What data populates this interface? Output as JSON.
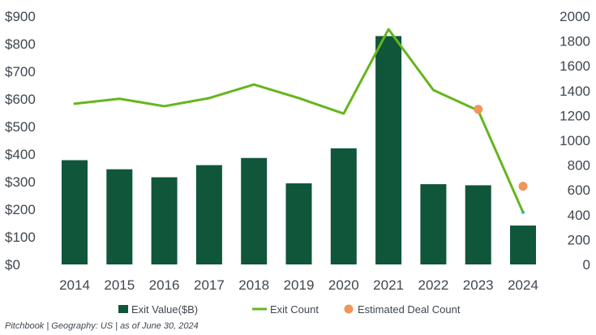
{
  "chart_data": {
    "type": "bar+line",
    "categories": [
      "2014",
      "2015",
      "2016",
      "2017",
      "2018",
      "2019",
      "2020",
      "2021",
      "2022",
      "2023",
      "2024"
    ],
    "series": [
      {
        "name": "Exit  Value($B)",
        "type": "bar",
        "axis": "left",
        "color": "#10563a",
        "values": [
          378,
          345,
          316,
          360,
          386,
          294,
          421,
          828,
          291,
          287,
          141
        ]
      },
      {
        "name": "Exit Count",
        "type": "line",
        "axis": "right",
        "color": "#66b51d",
        "values": [
          1295,
          1335,
          1275,
          1340,
          1450,
          1340,
          1215,
          1895,
          1405,
          1240,
          420
        ]
      },
      {
        "name": "Estimated Deal Count",
        "type": "scatter",
        "axis": "right",
        "color": "#f0965a",
        "points": [
          {
            "x": "2023",
            "y": 1250
          },
          {
            "x": "2024",
            "y": 630
          }
        ]
      }
    ],
    "y_left": {
      "min": 0,
      "max": 900,
      "step": 100,
      "tick_labels": [
        "$0",
        "$100",
        "$200",
        "$300",
        "$400",
        "$500",
        "$600",
        "$700",
        "$800",
        "$900"
      ]
    },
    "y_right": {
      "min": 0,
      "max": 2000,
      "step": 200,
      "tick_labels": [
        "0",
        "200",
        "400",
        "600",
        "800",
        "1000",
        "1200",
        "1400",
        "1600",
        "1800",
        "2000"
      ]
    },
    "legend": {
      "placement": "bottom",
      "items": [
        "Exit  Value($B)",
        "Exit Count",
        "Estimated Deal Count"
      ]
    }
  },
  "footer": {
    "source": "Pitchbook | Geography: US | as of June 30, 2024"
  },
  "colors": {
    "text": "#3f4750",
    "projection_segment": "#27b7c4"
  }
}
